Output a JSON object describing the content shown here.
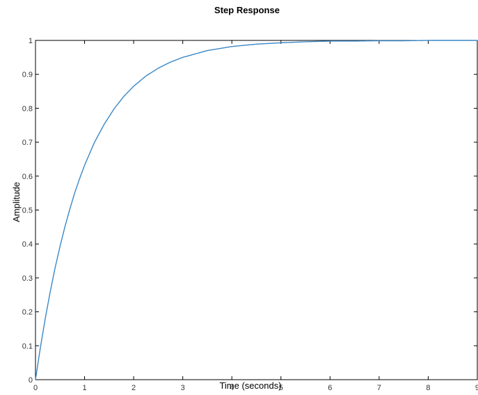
{
  "chart_data": {
    "type": "line",
    "title": "Step Response",
    "xlabel": "Time (seconds)",
    "ylabel": "Amplitude",
    "xlim": [
      0,
      9
    ],
    "ylim": [
      0,
      1
    ],
    "x_ticks": [
      "0",
      "1",
      "2",
      "3",
      "4",
      "5",
      "6",
      "7",
      "8",
      "9"
    ],
    "y_ticks": [
      "0",
      "0.1",
      "0.2",
      "0.3",
      "0.4",
      "0.5",
      "0.6",
      "0.7",
      "0.8",
      "0.9",
      "1"
    ],
    "grid": false,
    "reference_line": {
      "y": 1,
      "style": "dotted"
    },
    "series": [
      {
        "color": "#3a87c6",
        "x": [
          0,
          0.1,
          0.2,
          0.3,
          0.4,
          0.5,
          0.6,
          0.7,
          0.8,
          0.9,
          1.0,
          1.2,
          1.4,
          1.6,
          1.8,
          2.0,
          2.25,
          2.5,
          2.75,
          3.0,
          3.5,
          4.0,
          4.5,
          5.0,
          5.5,
          6.0,
          6.5,
          7.0,
          7.5,
          8.0,
          8.5,
          9.0
        ],
        "y": [
          0,
          0.095,
          0.181,
          0.259,
          0.33,
          0.393,
          0.451,
          0.503,
          0.551,
          0.593,
          0.632,
          0.699,
          0.753,
          0.798,
          0.835,
          0.865,
          0.895,
          0.918,
          0.936,
          0.95,
          0.97,
          0.982,
          0.989,
          0.993,
          0.996,
          0.998,
          0.998,
          0.999,
          0.999,
          1.0,
          1.0,
          1.0
        ]
      }
    ]
  }
}
